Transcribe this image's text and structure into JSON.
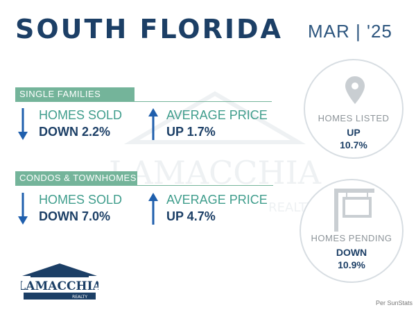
{
  "header": {
    "title": "SOUTH FLORIDA",
    "date": "MAR | '25"
  },
  "watermark": {
    "brand": "LAMACCHIA",
    "sub": "REALTY"
  },
  "sections": [
    {
      "label": "SINGLE FAMILIES",
      "stats": [
        {
          "label": "HOMES SOLD",
          "value": "DOWN 2.2%",
          "direction": "down"
        },
        {
          "label": "AVERAGE PRICE",
          "value": "UP 1.7%",
          "direction": "up"
        }
      ]
    },
    {
      "label": "CONDOS & TOWNHOMES",
      "stats": [
        {
          "label": "HOMES SOLD",
          "value": "DOWN 7.0%",
          "direction": "down"
        },
        {
          "label": "AVERAGE PRICE",
          "value": "UP 4.7%",
          "direction": "up"
        }
      ]
    }
  ],
  "circles": {
    "listed": {
      "label": "HOMES LISTED",
      "direction": "UP",
      "value": "10.7%",
      "icon": "map-pin-icon"
    },
    "pending": {
      "label": "HOMES PENDING",
      "direction": "DOWN",
      "value": "10.9%",
      "icon": "sign-post-icon"
    }
  },
  "logo": {
    "brand": "LAMACCHIA",
    "sub": "REALTY"
  },
  "source": "Per SunStats",
  "colors": {
    "navy": "#1c3f66",
    "teal": "#3f9d8c",
    "green_bar": "#74b49a",
    "arrow": "#1f5fad",
    "circle_border": "#d7dde2"
  }
}
